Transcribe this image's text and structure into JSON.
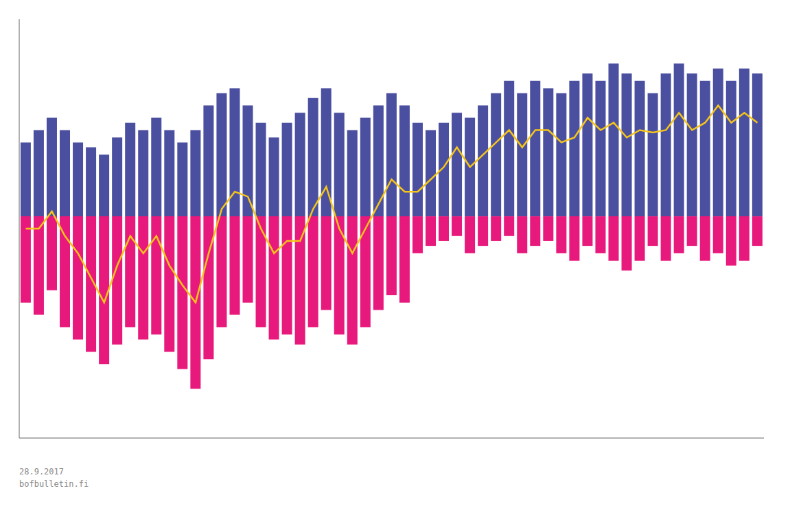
{
  "chart_data": {
    "type": "bar",
    "annotations": [
      "28.9.2017",
      "bofbulletin.fi"
    ],
    "categories": [
      null,
      null,
      null,
      null,
      null,
      null,
      null,
      null,
      null,
      null,
      null,
      null,
      null,
      null,
      null,
      null,
      null,
      null,
      null,
      null,
      null,
      null,
      null,
      null,
      null,
      null,
      null,
      null,
      null,
      null,
      null,
      null,
      null,
      null,
      null,
      null,
      null,
      null,
      null,
      null,
      null,
      null,
      null,
      null,
      null,
      null,
      null,
      null,
      null,
      null,
      null,
      null,
      null,
      null,
      null,
      null,
      null
    ],
    "series": [
      {
        "type": "bar",
        "color": "#4a4fa0",
        "values": [
          3.0,
          3.5,
          4.0,
          3.5,
          3.0,
          2.8,
          2.5,
          3.2,
          3.8,
          3.5,
          4.0,
          3.5,
          3.0,
          3.5,
          4.5,
          5.0,
          5.2,
          4.5,
          3.8,
          3.2,
          3.8,
          4.2,
          4.8,
          5.2,
          4.2,
          3.5,
          4.0,
          4.5,
          5.0,
          4.5,
          3.8,
          3.5,
          3.8,
          4.2,
          4.0,
          4.5,
          5.0,
          5.5,
          5.0,
          5.5,
          5.2,
          5.0,
          5.5,
          5.8,
          5.5,
          6.2,
          5.8,
          5.5,
          5.0,
          5.8,
          6.2,
          5.8,
          5.5,
          6.0,
          5.5,
          6.0,
          5.8
        ]
      },
      {
        "type": "bar",
        "color": "#e8197c",
        "values": [
          -3.5,
          -4.0,
          -3.0,
          -4.5,
          -5.0,
          -5.5,
          -6.0,
          -5.2,
          -4.5,
          -5.0,
          -4.8,
          -5.5,
          -6.2,
          -7.0,
          -5.8,
          -4.5,
          -4.0,
          -3.5,
          -4.5,
          -5.0,
          -4.8,
          -5.2,
          -4.5,
          -3.8,
          -4.8,
          -5.2,
          -4.5,
          -3.8,
          -3.2,
          -3.5,
          -1.5,
          -1.2,
          -1.0,
          -0.8,
          -1.5,
          -1.2,
          -1.0,
          -0.8,
          -1.5,
          -1.2,
          -1.0,
          -1.5,
          -1.8,
          -1.2,
          -1.5,
          -1.8,
          -2.2,
          -1.8,
          -1.2,
          -1.8,
          -1.5,
          -1.2,
          -1.8,
          -1.5,
          -2.0,
          -1.8,
          -1.2
        ]
      },
      {
        "type": "line",
        "color": "#f5c518",
        "values": [
          -0.5,
          -0.5,
          0.2,
          -0.8,
          -1.5,
          -2.5,
          -3.5,
          -2.0,
          -0.8,
          -1.5,
          -0.8,
          -2.0,
          -2.8,
          -3.5,
          -1.5,
          0.3,
          1.0,
          0.8,
          -0.5,
          -1.5,
          -1.0,
          -1.0,
          0.3,
          1.2,
          -0.5,
          -1.5,
          -0.5,
          0.5,
          1.5,
          1.0,
          1.0,
          1.5,
          2.0,
          2.8,
          2.0,
          2.5,
          3.0,
          3.5,
          2.8,
          3.5,
          3.5,
          3.0,
          3.2,
          4.0,
          3.5,
          3.8,
          3.2,
          3.5,
          3.4,
          3.5,
          4.2,
          3.5,
          3.8,
          4.5,
          3.8,
          4.2,
          3.8
        ]
      }
    ],
    "ylim": [
      -9,
      8
    ],
    "tick_labels": false,
    "grid": false
  }
}
